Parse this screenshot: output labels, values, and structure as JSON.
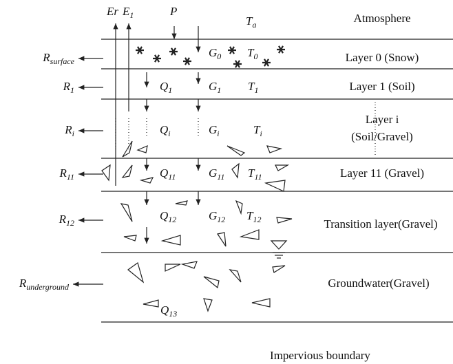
{
  "atmosphere": {
    "label": "Atmosphere",
    "symbols": [
      {
        "base": "Er"
      },
      {
        "base": "E",
        "sub": "1"
      },
      {
        "base": "P"
      },
      {
        "base": "T",
        "sub": "a"
      }
    ]
  },
  "layers": [
    {
      "label": [
        "Layer 0 (Snow)"
      ],
      "runoff": {
        "base": "R",
        "sub": "surface"
      },
      "symbols": [
        {
          "base": "G",
          "sub": "0"
        },
        {
          "base": "T",
          "sub": "0"
        }
      ]
    },
    {
      "label": [
        "Layer 1 (Soil)"
      ],
      "runoff": {
        "base": "R",
        "sub": "1"
      },
      "symbols": [
        {
          "base": "Q",
          "sub": "1"
        },
        {
          "base": "G",
          "sub": "1"
        },
        {
          "base": "T",
          "sub": "1"
        }
      ]
    },
    {
      "label": [
        "Layer i",
        "(Soil/Gravel)"
      ],
      "runoff": {
        "base": "R",
        "sub": "i"
      },
      "symbols": [
        {
          "base": "Q",
          "sub": "i"
        },
        {
          "base": "G",
          "sub": "i"
        },
        {
          "base": "T",
          "sub": "i"
        }
      ]
    },
    {
      "label": [
        "Layer 11 (Gravel)"
      ],
      "runoff": {
        "base": "R",
        "sub": "11"
      },
      "symbols": [
        {
          "base": "Q",
          "sub": "11"
        },
        {
          "base": "G",
          "sub": "11"
        },
        {
          "base": "T",
          "sub": "11"
        }
      ]
    },
    {
      "label": [
        "Transition layer(Gravel)"
      ],
      "runoff": {
        "base": "R",
        "sub": "12"
      },
      "symbols": [
        {
          "base": "Q",
          "sub": "12"
        },
        {
          "base": "G",
          "sub": "12"
        },
        {
          "base": "T",
          "sub": "12"
        }
      ]
    },
    {
      "label": [
        "Groundwater(Gravel)"
      ],
      "runoff": {
        "base": "R",
        "sub": "underground"
      },
      "symbols": [
        {
          "base": "Q",
          "sub": "13"
        }
      ]
    }
  ],
  "boundary": "Impervious boundary"
}
